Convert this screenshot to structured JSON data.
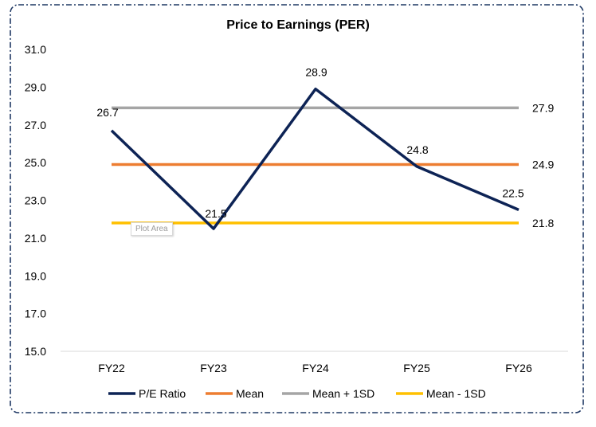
{
  "chart_data": {
    "type": "line",
    "title": "Price to Earnings (PER)",
    "xlabel": "",
    "ylabel": "",
    "categories": [
      "FY22",
      "FY23",
      "FY24",
      "FY25",
      "FY26"
    ],
    "ylim": [
      15.0,
      31.0
    ],
    "yticks": [
      "31.0",
      "29.0",
      "27.0",
      "25.0",
      "23.0",
      "21.0",
      "19.0",
      "17.0",
      "15.0"
    ],
    "grid": false,
    "legend_position": "bottom",
    "series": [
      {
        "name": "P/E Ratio",
        "color": "#0d2355",
        "values": [
          26.7,
          21.5,
          28.9,
          24.8,
          22.5
        ],
        "labels": [
          "26.7",
          "21.5",
          "28.9",
          "24.8",
          "22.5"
        ]
      },
      {
        "name": "Mean",
        "color": "#ed7d31",
        "values": [
          24.9,
          24.9,
          24.9,
          24.9,
          24.9
        ],
        "end_label": "24.9"
      },
      {
        "name": "Mean + 1SD",
        "color": "#a5a5a5",
        "values": [
          27.9,
          27.9,
          27.9,
          27.9,
          27.9
        ],
        "end_label": "27.9"
      },
      {
        "name": "Mean - 1SD",
        "color": "#ffc000",
        "values": [
          21.8,
          21.8,
          21.8,
          21.8,
          21.8
        ],
        "end_label": "21.8"
      }
    ]
  },
  "tooltip": {
    "text": "Plot Area"
  },
  "colors": {
    "border": "#1f3864",
    "axis": "#d9d9d9",
    "text": "#000000"
  }
}
